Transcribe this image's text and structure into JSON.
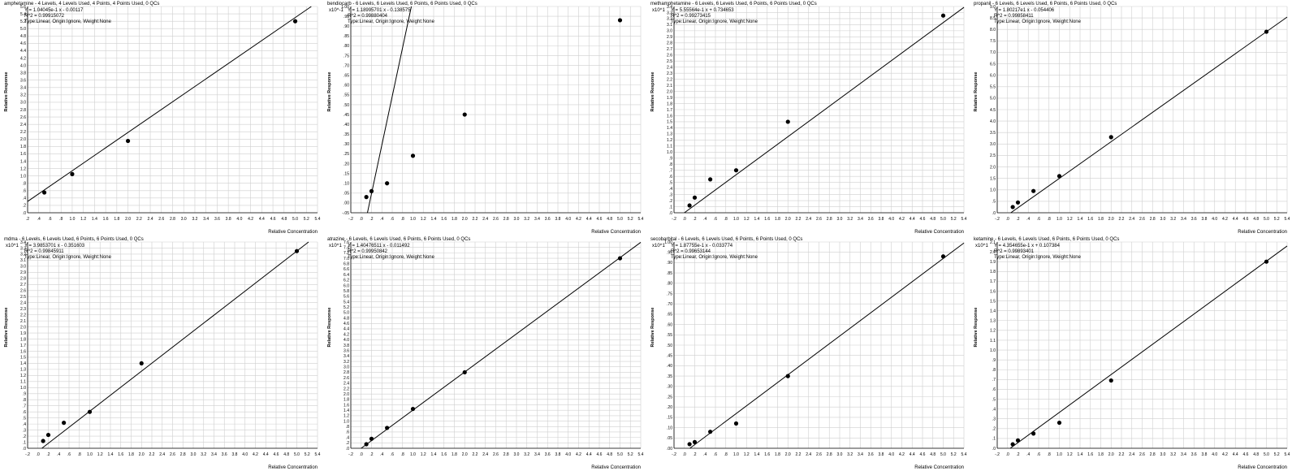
{
  "chart_data": [
    {
      "type": "scatter",
      "title": "amphetamine - 4 Levels, 4 Levels Used, 4 Points, 4 Points Used, 0 QCs",
      "equation": "Y = 1.04045e-1 x - 0.00117",
      "r2": "R^2 = 0.99915072",
      "fit_info": "Type:Linear, Origin:Ignore, Weight:None",
      "multiplier": "",
      "ylabel": "Relative Response",
      "xlabel": "Relative Concentration",
      "xlim": [
        0.2,
        5.4
      ],
      "ylim": [
        0,
        5.6
      ],
      "x": [
        0.5,
        1.0,
        2.0,
        5.0
      ],
      "y": [
        0.55,
        1.05,
        1.95,
        5.2
      ],
      "fit": [
        0.1,
        1.04
      ]
    },
    {
      "type": "scatter",
      "title": "bendiocarb - 6 Levels, 6 Levels Used, 6 Points, 6 Points Used, 0 QCs",
      "equation": "Y = 1.18995701 x - 0.138575",
      "r2": "R^2 = 0.99880404",
      "fit_info": "Type:Linear, Origin:Ignore, Weight:None",
      "multiplier": "x10^-1",
      "ylabel": "Relative Response",
      "xlabel": "Relative Concentration",
      "xlim": [
        -0.2,
        5.4
      ],
      "ylim": [
        -0.05,
        1.0
      ],
      "x": [
        0.1,
        0.2,
        0.5,
        1.0,
        2.0,
        5.0
      ],
      "y": [
        0.03,
        0.06,
        0.1,
        0.24,
        0.45,
        0.93
      ],
      "fit": [
        -0.2,
        1.238
      ]
    },
    {
      "type": "scatter",
      "title": "methamphetamine - 6 Levels, 6 Levels Used, 6 Points, 6 Points Used, 0 QCs",
      "equation": "Y = 5.55564e-1 x + 0.734653",
      "r2": "R^2 = 0.99273415",
      "fit_info": "Type:Linear, Origin:Ignore, Weight:None",
      "multiplier": "x10^1",
      "ylabel": "Relative Response",
      "xlabel": "Relative Concentration",
      "xlim": [
        -0.2,
        5.4
      ],
      "ylim": [
        0,
        3.4
      ],
      "x": [
        0.1,
        0.2,
        0.5,
        1.0,
        2.0,
        5.0
      ],
      "y": [
        0.12,
        0.25,
        0.55,
        0.7,
        1.5,
        3.25
      ],
      "fit": [
        0.0,
        0.627
      ]
    },
    {
      "type": "scatter",
      "title": "propanil - 6 Levels, 6 Levels Used, 6 Points, 6 Points Used, 0 QCs",
      "equation": "Y = 1.80217e1 x - 0.054406",
      "r2": "R^2 = 0.99858411",
      "fit_info": "Type:Linear, Origin:Ignore, Weight:None",
      "multiplier": "",
      "ylabel": "Relative Response",
      "xlabel": "Relative Concentration",
      "xlim": [
        -0.2,
        5.4
      ],
      "ylim": [
        0,
        9
      ],
      "x": [
        0.1,
        0.2,
        0.5,
        1.0,
        2.0,
        5.0
      ],
      "y": [
        0.25,
        0.45,
        0.95,
        1.6,
        3.3,
        7.9
      ],
      "fit": [
        -0.1,
        1.6
      ]
    },
    {
      "type": "scatter",
      "title": "mdma - 6 Levels, 6 Levels Used, 6 Points, 6 Points Used, 0 QCs",
      "equation": "Y = 3.9853701 x - 0.351603",
      "r2": "R^2 = 0.99845911",
      "fit_info": "Type:Linear, Origin:Ignore, Weight:None",
      "multiplier": "x10^1",
      "ylabel": "Relative Response",
      "xlabel": "Relative Concentration",
      "xlim": [
        -0.2,
        5.4
      ],
      "ylim": [
        0,
        3.4
      ],
      "x": [
        0.1,
        0.2,
        0.5,
        1.0,
        2.0,
        5.0
      ],
      "y": [
        0.12,
        0.22,
        0.42,
        0.6,
        1.4,
        3.25
      ],
      "fit": [
        -0.05,
        0.66
      ]
    },
    {
      "type": "scatter",
      "title": "atrazine - 6 Levels, 6 Levels Used, 6 Points, 6 Points Used, 0 QCs",
      "equation": "Y = 1.40476511 x - 0.011492",
      "r2": "R^2 = 0.99950842",
      "fit_info": "Type:Linear, Origin:Ignore, Weight:None",
      "multiplier": "x10^1",
      "ylabel": "Relative Response",
      "xlabel": "Relative Concentration",
      "xlim": [
        -0.2,
        5.4
      ],
      "ylim": [
        0,
        7.6
      ],
      "x": [
        0.1,
        0.2,
        0.5,
        1.0,
        2.0,
        5.0
      ],
      "y": [
        0.15,
        0.35,
        0.75,
        1.45,
        2.8,
        7.0
      ],
      "fit": [
        0.0,
        1.405
      ]
    },
    {
      "type": "scatter",
      "title": "secobarbital - 6 Levels, 6 Levels Used, 6 Points, 6 Points Used, 0 QCs",
      "equation": "Y = 1.87755e-1 x - 0.033774",
      "r2": "R^2 = 0.99653144",
      "fit_info": "Type:Linear, Origin:Ignore, Weight:None",
      "multiplier": "x10^1",
      "ylabel": "Relative Response",
      "xlabel": "Relative Concentration",
      "xlim": [
        -0.2,
        5.4
      ],
      "ylim": [
        0,
        1.0
      ],
      "x": [
        0.1,
        0.2,
        0.5,
        1.0,
        2.0,
        5.0
      ],
      "y": [
        0.02,
        0.03,
        0.08,
        0.12,
        0.35,
        0.93
      ],
      "fit": [
        -0.02,
        0.188
      ]
    },
    {
      "type": "scatter",
      "title": "ketamine - 6 Levels, 6 Levels Used, 6 Points, 6 Points Used, 0 QCs",
      "equation": "Y = 4.354655e-1 x + 0.107384",
      "r2": "R^2 = 0.99893401",
      "fit_info": "Type:Linear, Origin:Ignore, Weight:None",
      "multiplier": "x10^1",
      "ylabel": "Relative Response",
      "xlabel": "Relative Concentration",
      "xlim": [
        -0.2,
        5.4
      ],
      "ylim": [
        0,
        2.1
      ],
      "x": [
        0.1,
        0.2,
        0.5,
        1.0,
        2.0,
        5.0
      ],
      "y": [
        0.04,
        0.08,
        0.15,
        0.26,
        0.69,
        1.9
      ],
      "fit": [
        -0.02,
        0.385
      ]
    }
  ]
}
